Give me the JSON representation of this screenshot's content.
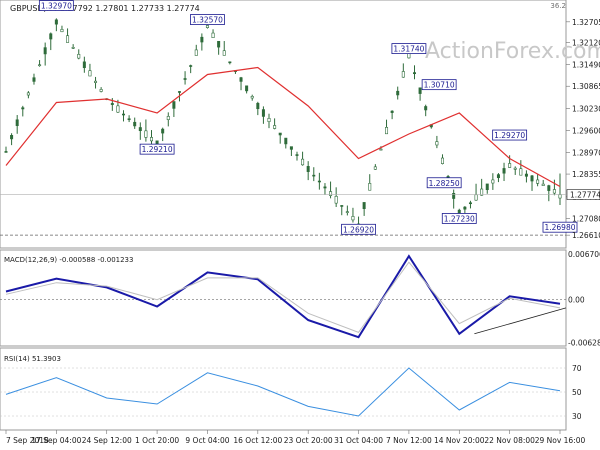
{
  "header": {
    "symbol_line": "GBPUSD,H4  1.27792 1.27801 1.27733 1.27774",
    "corner_value": "36.2"
  },
  "watermark": "ActionForex.com",
  "chart_data": [
    {
      "type": "candlestick",
      "panel": "price",
      "series": [
        {
          "name": "GBPUSD,H4",
          "x": [
            "7 Sep 2018",
            "17 Sep 04:00",
            "24 Sep 12:00",
            "1 Oct 20:00",
            "9 Oct 04:00",
            "16 Oct 12:00",
            "23 Oct 20:00",
            "31 Oct 04:00",
            "7 Nov 12:00",
            "14 Nov 20:00",
            "22 Nov 08:00",
            "29 Nov 16:00"
          ],
          "close": [
            1.29,
            1.327,
            1.305,
            1.2921,
            1.3257,
            1.303,
            1.285,
            1.2692,
            1.3174,
            1.2723,
            1.286,
            1.2777
          ]
        },
        {
          "name": "",
          "type": "line",
          "color": "#e03030",
          "values": [
            1.286,
            1.304,
            1.305,
            1.301,
            1.312,
            1.314,
            1.303,
            1.288,
            1.295,
            1.301,
            1.288,
            1.28
          ]
        }
      ],
      "annotations": [
        "1.32970",
        "1.32570",
        "1.31740",
        "1.30710",
        "1.29270",
        "1.29210",
        "1.28250",
        "1.27230",
        "1.26980",
        "1.26920",
        "1.26610"
      ],
      "ytick_labels": [
        "1.32705",
        "1.32120",
        "1.31490",
        "1.30865",
        "1.30230",
        "1.29600",
        "1.28970",
        "1.28355",
        "1.27705",
        "1.27080",
        "1.26610"
      ],
      "last_price_label": "1.27774",
      "support_line": "1.26610",
      "ylim": [
        1.263,
        1.331
      ]
    },
    {
      "type": "line",
      "panel": "macd",
      "title": "MACD(12,26,9) -0.000588 -0.001233",
      "series": [
        {
          "name": "MACD",
          "color": "#1a1aa8",
          "values": [
            0.0012,
            0.0031,
            0.0018,
            -0.001,
            0.004,
            0.003,
            -0.003,
            -0.0055,
            0.0064,
            -0.005,
            0.0005,
            -0.0006
          ]
        },
        {
          "name": "Signal",
          "color": "#bfbfbf",
          "values": [
            0.0008,
            0.0025,
            0.002,
            0.0,
            0.0032,
            0.0032,
            -0.002,
            -0.0048,
            0.0055,
            -0.0035,
            0.0002,
            -0.0012
          ]
        }
      ],
      "ytick_labels": [
        "0.006706",
        "0.00",
        "-0.00628"
      ],
      "ylim": [
        -0.0065,
        0.007
      ]
    },
    {
      "type": "line",
      "panel": "rsi",
      "title": "RSI(14) 51.3903",
      "series": [
        {
          "name": "RSI",
          "color": "#3a8fe0",
          "values": [
            48,
            62,
            45,
            40,
            66,
            55,
            38,
            30,
            70,
            35,
            58,
            51
          ]
        }
      ],
      "ytick_labels": [
        "70",
        "50",
        "30"
      ],
      "ylim": [
        20,
        85
      ]
    }
  ]
}
